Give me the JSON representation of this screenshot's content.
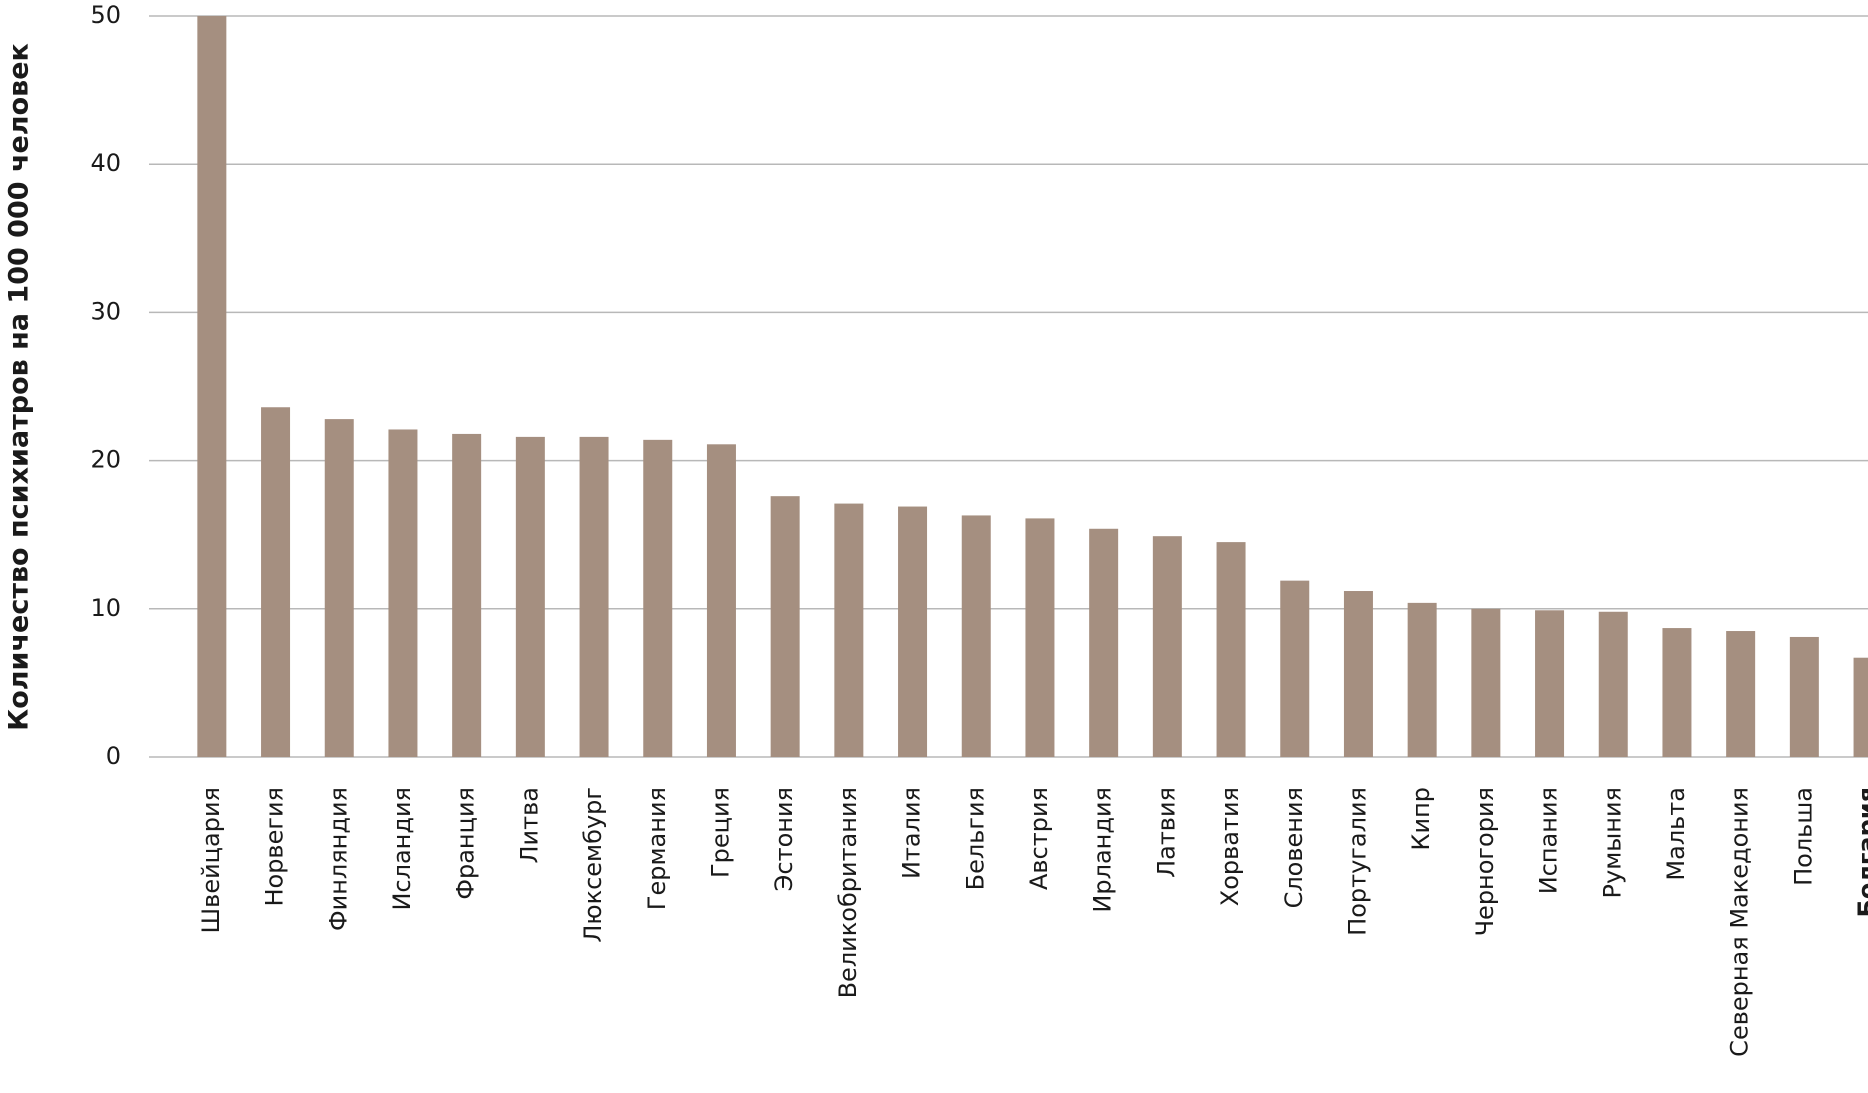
{
  "chart_data": {
    "type": "bar",
    "y_axis_label": "Количество психиатров на 100 000 человек",
    "categories": [
      "Швейцария",
      "Норвегия",
      "Финляндия",
      "Исландия",
      "Франция",
      "Литва",
      "Люксембург",
      "Германия",
      "Греция",
      "Эстония",
      "Великобритания",
      "Италия",
      "Бельгия",
      "Австрия",
      "Ирландия",
      "Латвия",
      "Хорватия",
      "Словения",
      "Португалия",
      "Кипр",
      "Черногория",
      "Испания",
      "Румыния",
      "Мальта",
      "Северная Македония",
      "Польша",
      "Болгария"
    ],
    "values": [
      50,
      23.6,
      22.8,
      22.1,
      21.8,
      21.6,
      21.6,
      21.4,
      21.1,
      17.6,
      17.1,
      16.9,
      16.3,
      16.1,
      15.4,
      14.9,
      14.5,
      11.9,
      11.2,
      10.4,
      10.0,
      9.9,
      9.8,
      8.7,
      8.5,
      8.1,
      6.7
    ],
    "color": "#a58f80",
    "ylim": [
      0,
      50
    ],
    "yticks": [
      0,
      10,
      20,
      30,
      40,
      50
    ],
    "grid": true
  }
}
